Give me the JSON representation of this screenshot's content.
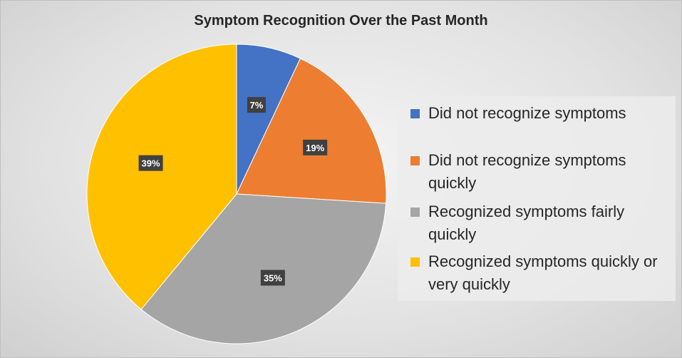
{
  "chart_data": {
    "type": "pie",
    "title": "Symptom Recognition Over the Past Month",
    "slices": [
      {
        "label": "Did not recognize symptoms",
        "value": 7,
        "display": "7%",
        "color": "#4472C4"
      },
      {
        "label": "Did not recognize symptoms quickly",
        "value": 19,
        "display": "19%",
        "color": "#ED7D31"
      },
      {
        "label": "Recognized symptoms fairly quickly",
        "value": 35,
        "display": "35%",
        "color": "#A5A5A5"
      },
      {
        "label": "Recognized symptoms quickly or very quickly",
        "value": 39,
        "display": "39%",
        "color": "#FFC000"
      }
    ],
    "legend_position": "right"
  }
}
